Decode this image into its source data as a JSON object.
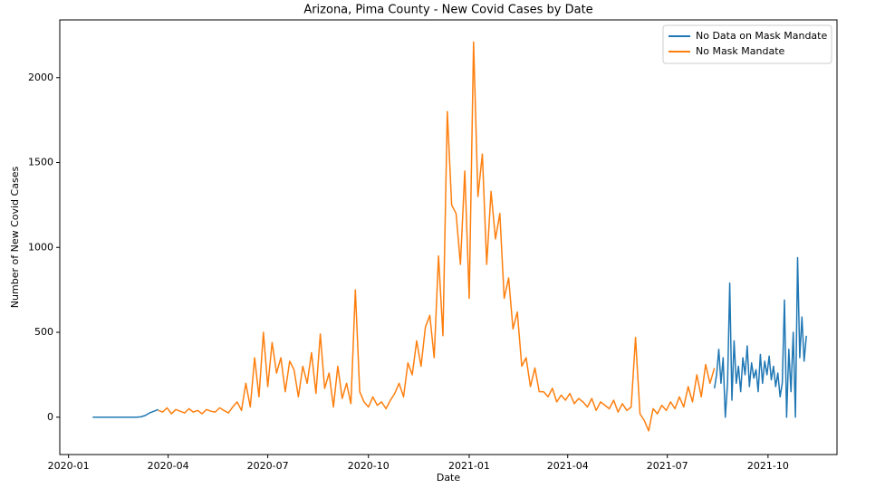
{
  "chart_data": {
    "type": "line",
    "title": "Arizona, Pima County - New Covid Cases by Date",
    "x_label": "Date",
    "y_label": "Number of New Covid Cases",
    "legend": "upper right",
    "grid": false,
    "xlim": [
      -8,
      702
    ],
    "ylim": [
      -220,
      2340
    ],
    "xticks": [
      {
        "value": 0,
        "label": "2020-01"
      },
      {
        "value": 91,
        "label": "2020-04"
      },
      {
        "value": 182,
        "label": "2020-07"
      },
      {
        "value": 274,
        "label": "2020-10"
      },
      {
        "value": 366,
        "label": "2021-01"
      },
      {
        "value": 456,
        "label": "2021-04"
      },
      {
        "value": 547,
        "label": "2021-07"
      },
      {
        "value": 639,
        "label": "2021-10"
      }
    ],
    "yticks": [
      0,
      500,
      1000,
      1500,
      2000
    ],
    "series": [
      {
        "name": "No Data on Mask Mandate",
        "color": "#1f77b4",
        "x": [
          22,
          26,
          30,
          34,
          38,
          42,
          46,
          50,
          54,
          58,
          62,
          66,
          70,
          74,
          78,
          82,
          86,
          590,
          592,
          594,
          596,
          598,
          600,
          602,
          604,
          606,
          608,
          610,
          612,
          614,
          616,
          618,
          620,
          622,
          624,
          626,
          628,
          630,
          632,
          634,
          636,
          638,
          640,
          642,
          644,
          646,
          648,
          650,
          652,
          654,
          656,
          658,
          660,
          662,
          664,
          666,
          668,
          670,
          672,
          674
        ],
        "values": [
          0,
          0,
          0,
          0,
          0,
          0,
          0,
          0,
          0,
          0,
          0,
          2,
          10,
          25,
          35,
          45,
          null,
          170,
          250,
          400,
          200,
          350,
          0,
          200,
          790,
          100,
          450,
          200,
          300,
          150,
          350,
          250,
          420,
          180,
          320,
          230,
          280,
          150,
          370,
          200,
          330,
          250,
          360,
          220,
          300,
          180,
          260,
          120,
          200,
          690,
          0,
          400,
          150,
          500,
          0,
          940,
          350,
          590,
          330,
          480
        ]
      },
      {
        "name": "No Mask Mandate",
        "color": "#ff7f0e",
        "x": [
          82,
          86,
          90,
          94,
          98,
          102,
          106,
          110,
          114,
          118,
          122,
          126,
          130,
          134,
          138,
          142,
          146,
          150,
          154,
          158,
          162,
          166,
          170,
          174,
          178,
          182,
          186,
          190,
          194,
          198,
          202,
          206,
          210,
          214,
          218,
          222,
          226,
          230,
          234,
          238,
          242,
          246,
          250,
          254,
          258,
          262,
          266,
          270,
          274,
          278,
          282,
          286,
          290,
          294,
          298,
          302,
          306,
          310,
          314,
          318,
          322,
          326,
          330,
          334,
          338,
          342,
          346,
          350,
          354,
          358,
          362,
          366,
          370,
          374,
          378,
          382,
          386,
          390,
          394,
          398,
          402,
          406,
          410,
          414,
          418,
          422,
          426,
          430,
          434,
          438,
          442,
          446,
          450,
          454,
          458,
          462,
          466,
          470,
          474,
          478,
          482,
          486,
          490,
          494,
          498,
          502,
          506,
          510,
          514,
          518,
          522,
          526,
          530,
          534,
          538,
          542,
          546,
          550,
          554,
          558,
          562,
          566,
          570,
          574,
          578,
          582,
          586,
          590
        ],
        "values": [
          40,
          30,
          55,
          20,
          45,
          35,
          25,
          50,
          30,
          40,
          20,
          45,
          35,
          30,
          55,
          40,
          25,
          60,
          90,
          40,
          200,
          60,
          350,
          120,
          500,
          180,
          440,
          260,
          350,
          150,
          330,
          280,
          120,
          300,
          200,
          380,
          140,
          490,
          170,
          260,
          60,
          300,
          110,
          200,
          80,
          750,
          150,
          90,
          60,
          120,
          70,
          90,
          50,
          100,
          140,
          200,
          120,
          320,
          250,
          450,
          300,
          530,
          600,
          350,
          950,
          480,
          1800,
          1250,
          1200,
          900,
          1450,
          700,
          2210,
          1300,
          1550,
          900,
          1330,
          1050,
          1200,
          700,
          820,
          520,
          620,
          300,
          350,
          180,
          290,
          150,
          150,
          120,
          170,
          90,
          130,
          100,
          140,
          80,
          110,
          90,
          60,
          110,
          40,
          90,
          70,
          50,
          100,
          30,
          80,
          40,
          60,
          470,
          20,
          -20,
          -80,
          50,
          20,
          70,
          40,
          90,
          50,
          120,
          60,
          180,
          90,
          250,
          120,
          310,
          200,
          290
        ]
      }
    ]
  }
}
